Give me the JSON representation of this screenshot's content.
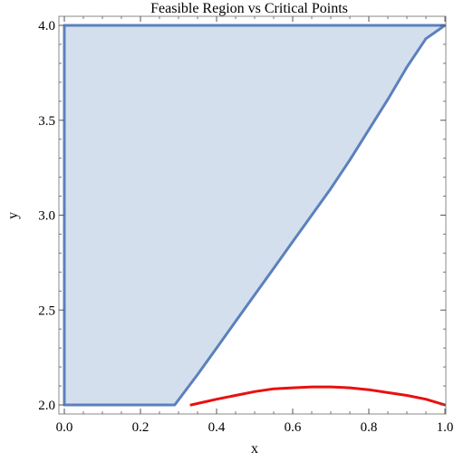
{
  "chart_data": {
    "type": "area",
    "title": "Feasible Region vs Critical Points",
    "xlabel": "x",
    "ylabel": "y",
    "xlim": [
      0,
      1
    ],
    "ylim": [
      2,
      4
    ],
    "x_ticks": [
      "0.0",
      "0.2",
      "0.4",
      "0.6",
      "0.8",
      "1.0"
    ],
    "y_ticks": [
      "2.0",
      "2.5",
      "3.0",
      "3.5",
      "4.0"
    ],
    "grid": false,
    "legend": "none",
    "colors": {
      "region_fill": "#ccd9ea",
      "region_stroke": "#5b80bd",
      "critical": "#e8110f",
      "frame": "#888888"
    },
    "series": [
      {
        "kind": "region",
        "x": [
          0.0,
          0.0,
          0.29,
          0.4,
          0.5,
          0.6,
          0.7,
          0.8,
          0.9,
          0.95,
          1.0,
          0.0
        ],
        "y": [
          2.0,
          4.0,
          4.0,
          4.0,
          4.0,
          4.0,
          4.0,
          4.0,
          4.0,
          4.0,
          4.0,
          4.0
        ],
        "lower_x": [
          0.0,
          0.29,
          0.35,
          0.4,
          0.45,
          0.5,
          0.55,
          0.6,
          0.65,
          0.7,
          0.75,
          0.8,
          0.85,
          0.9,
          0.95,
          1.0
        ],
        "lower_y": [
          2.0,
          2.0,
          2.16,
          2.3,
          2.44,
          2.58,
          2.72,
          2.86,
          3.0,
          3.14,
          3.29,
          3.45,
          3.61,
          3.78,
          3.93,
          4.0
        ]
      },
      {
        "kind": "line",
        "x": [
          0.333,
          0.4,
          0.45,
          0.5,
          0.55,
          0.6,
          0.65,
          0.7,
          0.75,
          0.8,
          0.85,
          0.9,
          0.95,
          1.0
        ],
        "y": [
          2.0,
          2.03,
          2.05,
          2.07,
          2.085,
          2.09,
          2.095,
          2.095,
          2.09,
          2.08,
          2.065,
          2.05,
          2.03,
          2.0
        ]
      }
    ]
  }
}
